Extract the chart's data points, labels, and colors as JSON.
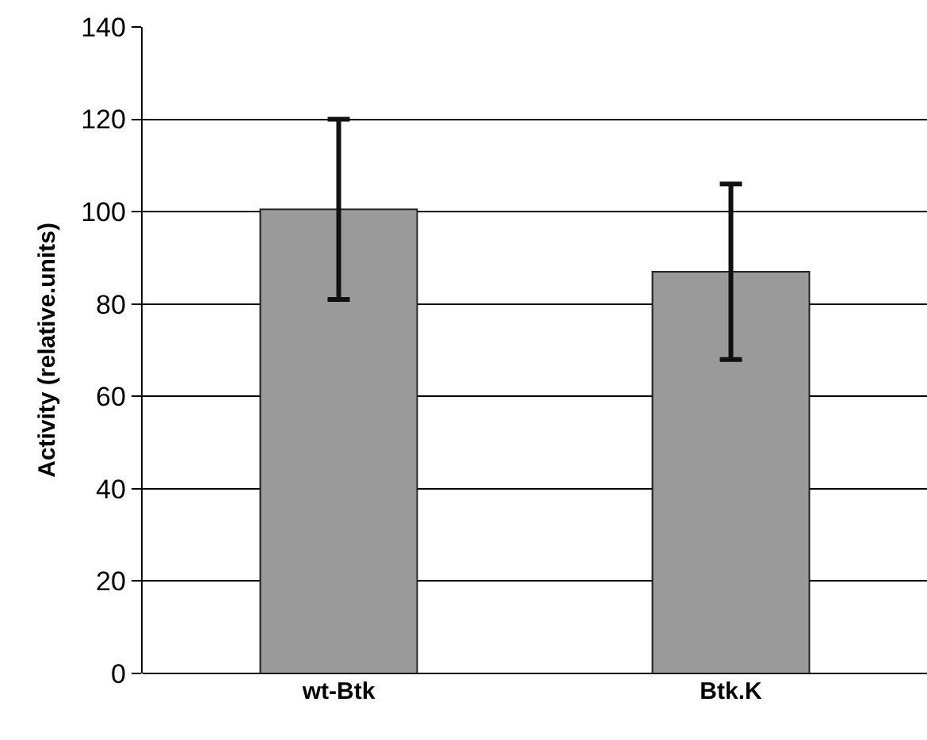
{
  "chart_data": {
    "type": "bar",
    "ylabel": "Activity (relative.units)",
    "categories": [
      "wt-Btk",
      "Btk.K"
    ],
    "values": [
      100.5,
      87
    ],
    "errors": [
      19.5,
      19
    ],
    "color": "#9a9a9a",
    "ylim": [
      0,
      140
    ],
    "yticks": [
      0,
      20,
      40,
      60,
      80,
      100,
      120,
      140
    ],
    "grid": "y"
  }
}
